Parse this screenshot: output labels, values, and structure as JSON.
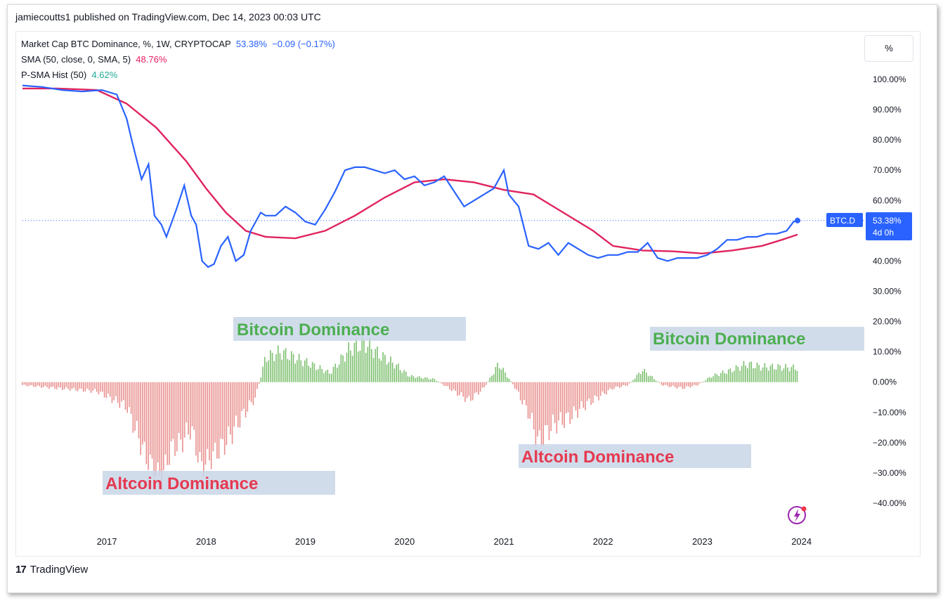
{
  "header": {
    "publisher": "jamiecoutts1 published on TradingView.com, Dec 14, 2023 00:03 UTC"
  },
  "legend": {
    "line1_label": "Market Cap BTC Dominance, %, 1W, CRYPTOCAP",
    "line1_value": "53.38%",
    "line1_change": "−0.09 (−0.17%)",
    "line2_label": "SMA (50, close, 0, SMA, 5)",
    "line2_value": "48.76%",
    "line3_label": "P-SMA Hist (50)",
    "line3_value": "4.62%"
  },
  "scale_button": "%",
  "price_tag": {
    "symbol": "BTC.D",
    "value": "53.38%",
    "countdown": "4d 0h"
  },
  "annotations": {
    "bitcoin_1": "Bitcoin Dominance",
    "bitcoin_2": "Bitcoin Dominance",
    "altcoin_1": "Altcoin Dominance",
    "altcoin_2": "Altcoin Dominance"
  },
  "footer": {
    "brand": "TradingView",
    "logo_text": "17"
  },
  "colors": {
    "price_line": "#2962ff",
    "sma_line": "#e0245e",
    "hist_positive": "#7cbf6e",
    "hist_negative": "#e8908e",
    "annotation_bg": "#c9d6e8",
    "bitcoin_text": "#4caf50",
    "altcoin_text": "#e53950",
    "tag_bg": "#2962ff"
  },
  "chart_data": {
    "type": "line",
    "title": "Market Cap BTC Dominance, %, 1W, CRYPTOCAP",
    "ylabel": "",
    "xlabel": "",
    "y_ticks": [
      "100.00%",
      "90.00%",
      "80.00%",
      "70.00%",
      "60.00%",
      "50.00%",
      "40.00%",
      "30.00%",
      "20.00%",
      "10.00%",
      "0.00%",
      "−10.00%",
      "−20.00%",
      "−30.00%",
      "−40.00%"
    ],
    "x_ticks": [
      "2017",
      "2018",
      "2019",
      "2020",
      "2021",
      "2022",
      "2023",
      "2024"
    ],
    "ylim": [
      -46,
      105
    ],
    "xlim": [
      2016.15,
      2024.5
    ],
    "grid": false,
    "series": [
      {
        "name": "Market Cap BTC Dominance",
        "type": "line",
        "x": [
          2016.15,
          2016.35,
          2016.55,
          2016.75,
          2016.95,
          2017.1,
          2017.2,
          2017.25,
          2017.35,
          2017.42,
          2017.48,
          2017.55,
          2017.6,
          2017.7,
          2017.78,
          2017.85,
          2017.9,
          2017.96,
          2018.02,
          2018.08,
          2018.15,
          2018.22,
          2018.3,
          2018.38,
          2018.45,
          2018.55,
          2018.6,
          2018.7,
          2018.8,
          2018.9,
          2019.0,
          2019.1,
          2019.2,
          2019.3,
          2019.4,
          2019.5,
          2019.6,
          2019.7,
          2019.8,
          2019.9,
          2020.0,
          2020.1,
          2020.2,
          2020.3,
          2020.4,
          2020.5,
          2020.6,
          2020.7,
          2020.8,
          2020.9,
          2021.0,
          2021.05,
          2021.15,
          2021.25,
          2021.35,
          2021.45,
          2021.55,
          2021.65,
          2021.75,
          2021.85,
          2021.95,
          2022.05,
          2022.15,
          2022.25,
          2022.35,
          2022.45,
          2022.55,
          2022.65,
          2022.75,
          2022.85,
          2022.95,
          2023.05,
          2023.15,
          2023.25,
          2023.35,
          2023.45,
          2023.55,
          2023.65,
          2023.75,
          2023.85,
          2023.92,
          2023.96
        ],
        "values": [
          98,
          97.5,
          96.5,
          96,
          96.5,
          95,
          87,
          80,
          67,
          72,
          55,
          52,
          48,
          57,
          65,
          55,
          52,
          40,
          38,
          39,
          45,
          48,
          40,
          42,
          50,
          56,
          55,
          55,
          58,
          56,
          53,
          52,
          57,
          63,
          70,
          71,
          71,
          70,
          69,
          70,
          67,
          68,
          65,
          66,
          68,
          63,
          58,
          60,
          62,
          64,
          70,
          62,
          58,
          45,
          44,
          46,
          42,
          46,
          44,
          42,
          41,
          42,
          42,
          43,
          43,
          46,
          41,
          40,
          41,
          41,
          41,
          42,
          44,
          47,
          47,
          48,
          48,
          49,
          49,
          50,
          53,
          53.38
        ]
      },
      {
        "name": "SMA (50, close, 0, SMA, 5)",
        "type": "line",
        "x": [
          2016.15,
          2016.5,
          2016.9,
          2017.2,
          2017.5,
          2017.8,
          2018.0,
          2018.2,
          2018.4,
          2018.6,
          2018.9,
          2019.2,
          2019.5,
          2019.8,
          2020.1,
          2020.4,
          2020.7,
          2021.0,
          2021.3,
          2021.6,
          2021.9,
          2022.1,
          2022.4,
          2022.7,
          2023.0,
          2023.3,
          2023.6,
          2023.8,
          2023.96
        ],
        "values": [
          97,
          97,
          96.5,
          92,
          84,
          73,
          64,
          56,
          50,
          48,
          47.5,
          50,
          55,
          61,
          66,
          67,
          66,
          63.5,
          62,
          56,
          50,
          45,
          43.5,
          43.2,
          42.5,
          43.5,
          45,
          47,
          48.76
        ]
      },
      {
        "name": "P-SMA Hist (50)",
        "type": "histogram",
        "x": [
          2016.15,
          2016.5,
          2016.9,
          2017.2,
          2017.4,
          2017.55,
          2017.65,
          2017.75,
          2017.85,
          2017.95,
          2018.05,
          2018.2,
          2018.35,
          2018.5,
          2018.6,
          2018.75,
          2018.9,
          2019.05,
          2019.25,
          2019.45,
          2019.6,
          2019.75,
          2019.9,
          2020.05,
          2020.3,
          2020.5,
          2020.65,
          2020.8,
          2020.95,
          2021.1,
          2021.25,
          2021.35,
          2021.5,
          2021.65,
          2021.8,
          2021.95,
          2022.1,
          2022.25,
          2022.4,
          2022.6,
          2022.8,
          2022.95,
          2023.1,
          2023.3,
          2023.45,
          2023.6,
          2023.75,
          2023.96
        ],
        "values": [
          -1,
          -2,
          -3,
          -8,
          -25,
          -32,
          -22,
          -20,
          -15,
          -28,
          -25,
          -20,
          -12,
          -5,
          8,
          10,
          8,
          6,
          3,
          11,
          13,
          9,
          6,
          2,
          1,
          -3,
          -6,
          -2,
          6,
          -1,
          -10,
          -20,
          -14,
          -12,
          -8,
          -5,
          -2,
          -1,
          4,
          -1,
          -2,
          -1,
          2,
          4,
          6,
          5,
          5,
          4.62
        ]
      }
    ]
  }
}
